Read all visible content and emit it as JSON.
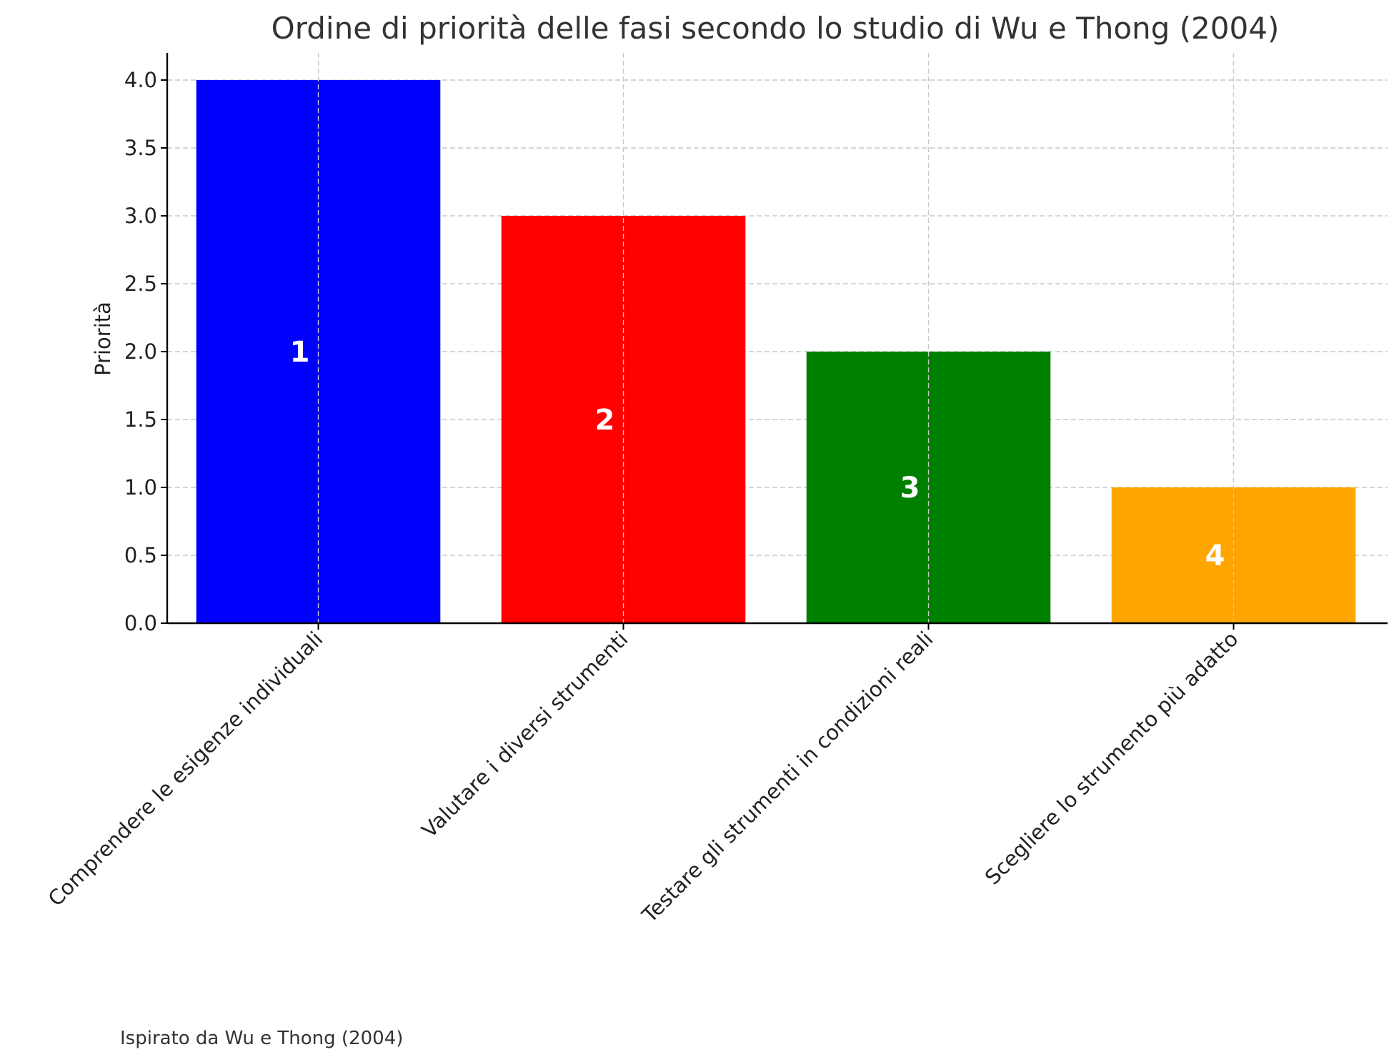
{
  "chart_data": {
    "type": "bar",
    "title": "Ordine di priorità delle fasi secondo lo studio di Wu e Thong (2004)",
    "xlabel": "",
    "ylabel": "Priorità",
    "categories": [
      "Comprendere le esigenze individuali",
      "Valutare i diversi strumenti",
      "Testare gli strumenti in condizioni reali",
      "Scegliere lo strumento più adatto"
    ],
    "values": [
      4,
      3,
      2,
      1
    ],
    "bar_labels": [
      "1",
      "2",
      "3",
      "4"
    ],
    "colors": [
      "#0000ff",
      "#ff0000",
      "#008000",
      "#ffa500"
    ],
    "ylim": [
      0,
      4.2
    ],
    "yticks": [
      0.0,
      0.5,
      1.0,
      1.5,
      2.0,
      2.5,
      3.0,
      3.5,
      4.0
    ],
    "ytick_labels": [
      "0.0",
      "0.5",
      "1.0",
      "1.5",
      "2.0",
      "2.5",
      "3.0",
      "3.5",
      "4.0"
    ],
    "grid": true,
    "footnote": "Ispirato da Wu e Thong (2004)"
  }
}
